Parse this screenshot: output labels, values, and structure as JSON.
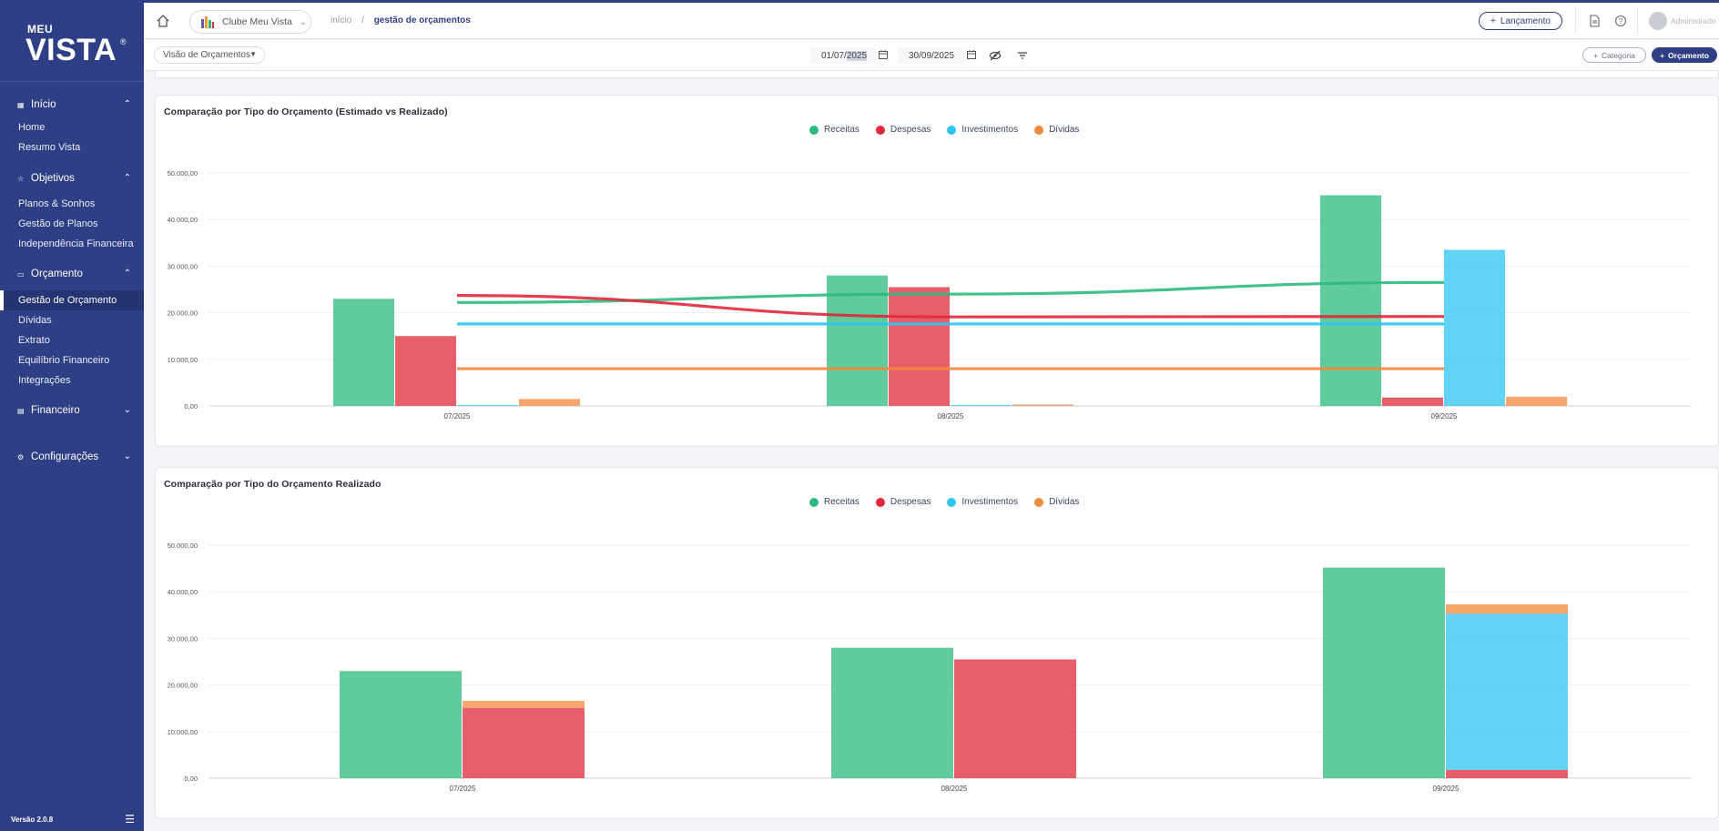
{
  "sidebar": {
    "logo_small": "MEU",
    "logo_big": "VISTA",
    "logo_reg": "®",
    "sections": [
      {
        "label": "Início",
        "icon": "grid-icon",
        "expanded": true,
        "items": [
          "Home",
          "Resumo Vista"
        ]
      },
      {
        "label": "Objetivos",
        "icon": "star-icon",
        "expanded": true,
        "items": [
          "Planos & Sonhos",
          "Gestão de Planos",
          "Independência Financeira"
        ]
      },
      {
        "label": "Orçamento",
        "icon": "wallet-icon",
        "expanded": true,
        "items": [
          "Gestão de Orçamento",
          "Dívidas",
          "Extrato",
          "Equilíbrio Financeiro",
          "Integrações"
        ]
      },
      {
        "label": "Financeiro",
        "icon": "card-icon",
        "expanded": false,
        "items": []
      },
      {
        "label": "Configurações",
        "icon": "gear-icon",
        "expanded": false,
        "items": []
      }
    ],
    "active_item": "Gestão de Orçamento",
    "version": "Versão 2.0.8"
  },
  "topbar": {
    "club": "Clube Meu Vista",
    "breadcrumb": [
      "início",
      "gestão de orçamentos"
    ],
    "lancamento_label": "Lançamento",
    "user_name": "Administrado"
  },
  "filterbar": {
    "view_select": "Visão de Orçamentos",
    "date_start_prefix": "01/07/",
    "date_start_year": "2025",
    "date_end": "30/09/2025",
    "categoria_label": "Categoria",
    "orcamento_label": "Orçamento"
  },
  "colors": {
    "receitas": "#2dba7e",
    "despesas": "#e0293b",
    "investimentos": "#2ec4f1",
    "dividas": "#f08a3c",
    "primary": "#2f3f86"
  },
  "chart_data": [
    {
      "type": "bar",
      "title": "Comparação por Tipo do Orçamento (Estimado vs Realizado)",
      "categories": [
        "07/2025",
        "08/2025",
        "09/2025"
      ],
      "ylim": [
        0,
        50000
      ],
      "yticks": [
        "0,00",
        "10.000,00",
        "20.000,00",
        "30.000,00",
        "40.000,00",
        "50.000,00"
      ],
      "legend": [
        "Receitas",
        "Despesas",
        "Investimentos",
        "Dívidas"
      ],
      "legend_position": "top-center",
      "grid": true,
      "series": [
        {
          "name": "Receitas",
          "values": [
            23000,
            28000,
            45200
          ]
        },
        {
          "name": "Despesas",
          "values": [
            15000,
            25500,
            1800
          ]
        },
        {
          "name": "Investimentos",
          "values": [
            200,
            200,
            33500
          ]
        },
        {
          "name": "Dívidas",
          "values": [
            1500,
            300,
            2000
          ]
        }
      ],
      "lines": [
        {
          "name": "Receitas",
          "values": [
            22200,
            24000,
            26500
          ]
        },
        {
          "name": "Despesas",
          "values": [
            23700,
            19100,
            19200
          ]
        },
        {
          "name": "Investimentos",
          "values": [
            17600,
            17600,
            17600
          ]
        },
        {
          "name": "Dívidas",
          "values": [
            8000,
            8000,
            8000
          ]
        }
      ]
    },
    {
      "type": "bar",
      "title": "Comparação por Tipo do Orçamento Realizado",
      "categories": [
        "07/2025",
        "08/2025",
        "09/2025"
      ],
      "ylim": [
        0,
        50000
      ],
      "yticks": [
        "0,00",
        "10.000,00",
        "20.000,00",
        "30.000,00",
        "40.000,00",
        "50.000,00"
      ],
      "legend": [
        "Receitas",
        "Despesas",
        "Investimentos",
        "Dívidas"
      ],
      "legend_position": "top-center",
      "grid": true,
      "stacked_second_bar": true,
      "series": [
        {
          "name": "Receitas",
          "values": [
            23000,
            28000,
            45200
          ]
        },
        {
          "name": "Despesas",
          "values": [
            15100,
            25500,
            1800
          ]
        },
        {
          "name": "Investimentos",
          "values": [
            0,
            0,
            33500
          ]
        },
        {
          "name": "Dívidas",
          "values": [
            1500,
            0,
            2000
          ]
        }
      ]
    }
  ]
}
